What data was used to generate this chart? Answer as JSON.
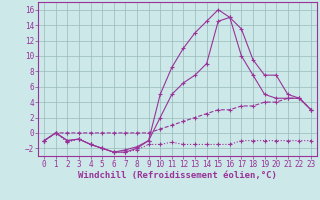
{
  "background_color": "#cce8e8",
  "grid_color": "#99bbbb",
  "line_color": "#993399",
  "xlabel": "Windchill (Refroidissement éolien,°C)",
  "xlabel_fontsize": 6.5,
  "tick_fontsize": 5.5,
  "ylim": [
    -3,
    17
  ],
  "xlim": [
    -0.5,
    23.5
  ],
  "yticks": [
    -2,
    0,
    2,
    4,
    6,
    8,
    10,
    12,
    14,
    16
  ],
  "xticks": [
    0,
    1,
    2,
    3,
    4,
    5,
    6,
    7,
    8,
    9,
    10,
    11,
    12,
    13,
    14,
    15,
    16,
    17,
    18,
    19,
    20,
    21,
    22,
    23
  ],
  "series1_x": [
    0,
    1,
    2,
    3,
    4,
    5,
    6,
    7,
    8,
    9,
    10,
    11,
    12,
    13,
    14,
    15,
    16,
    17,
    18,
    19,
    20,
    21,
    22,
    23
  ],
  "series1_y": [
    -1,
    0,
    0,
    0,
    0,
    0,
    0,
    0,
    0,
    0,
    0.5,
    1,
    1.5,
    2,
    2.5,
    3,
    3,
    3.5,
    3.5,
    4,
    4,
    4.5,
    4.5,
    3
  ],
  "series2_x": [
    0,
    1,
    2,
    3,
    4,
    5,
    6,
    7,
    8,
    9,
    10,
    11,
    12,
    13,
    14,
    15,
    16,
    17,
    18,
    19,
    20,
    21,
    22,
    23
  ],
  "series2_y": [
    -1,
    0,
    -1.2,
    -0.8,
    -1.5,
    -2.0,
    -2.5,
    -2.5,
    -2.2,
    -1.5,
    -1.5,
    -1.2,
    -1.5,
    -1.5,
    -1.5,
    -1.5,
    -1.5,
    -1,
    -1,
    -1,
    -1,
    -1,
    -1,
    -1
  ],
  "series3_x": [
    0,
    1,
    2,
    3,
    4,
    5,
    6,
    7,
    8,
    9,
    10,
    11,
    12,
    13,
    14,
    15,
    16,
    17,
    18,
    19,
    20,
    21,
    22,
    23
  ],
  "series3_y": [
    -1,
    0,
    -1,
    -0.8,
    -1.5,
    -2.0,
    -2.5,
    -2.5,
    -2.0,
    -1.0,
    5,
    8.5,
    11,
    13,
    14.5,
    16,
    15,
    10,
    7.5,
    5,
    4.5,
    4.5,
    4.5,
    3
  ],
  "series4_x": [
    0,
    1,
    2,
    3,
    4,
    5,
    6,
    7,
    8,
    9,
    10,
    11,
    12,
    13,
    14,
    15,
    16,
    17,
    18,
    19,
    20,
    21,
    22,
    23
  ],
  "series4_y": [
    -1,
    0,
    -1,
    -0.8,
    -1.5,
    -2.0,
    -2.5,
    -2.2,
    -1.8,
    -1.0,
    2,
    5,
    6.5,
    7.5,
    9,
    14.5,
    15,
    13.5,
    9.5,
    7.5,
    7.5,
    5,
    4.5,
    3
  ]
}
